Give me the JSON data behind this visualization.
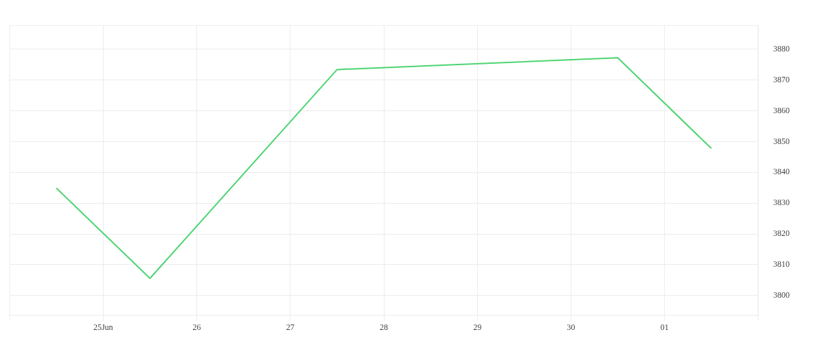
{
  "chart_data": {
    "type": "line",
    "x": [
      "--06-24T12:00",
      "--06-25T12:00",
      "--06-27T12:00",
      "--06-30T12:00",
      "--07-01T12:00"
    ],
    "series": [
      {
        "color": "#4cd471",
        "values": [
          3834.9,
          3805.6,
          3873.4,
          3877.2,
          3847.8
        ]
      }
    ],
    "xlim": [
      "--06-24",
      "--07-02"
    ],
    "xticks": [
      {
        "value": "--06-25",
        "label": "25Jun"
      },
      {
        "value": "--06-26",
        "label": "26"
      },
      {
        "value": "--06-27",
        "label": "27"
      },
      {
        "value": "--06-28",
        "label": "28"
      },
      {
        "value": "--06-29",
        "label": "29"
      },
      {
        "value": "--06-30",
        "label": "30"
      },
      {
        "value": "--07-01",
        "label": "01"
      }
    ],
    "ylim": [
      3793.6,
      3887.7
    ],
    "yticks": [
      3800,
      3810,
      3820,
      3830,
      3840,
      3850,
      3860,
      3870,
      3880
    ],
    "grid": true,
    "legend": false,
    "marker": "none",
    "line_style": "solid"
  }
}
